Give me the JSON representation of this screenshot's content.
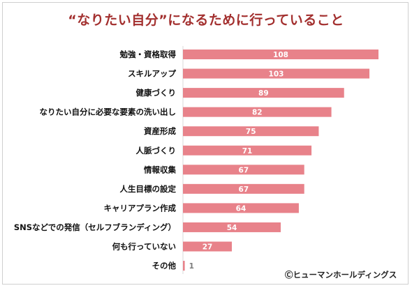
{
  "chart_data": {
    "type": "bar",
    "orientation": "horizontal",
    "title": "“なりたい自分”になるために行っていること",
    "categories": [
      "勉強・資格取得",
      "スキルアップ",
      "健康づくり",
      "なりたい自分に必要な要素の洗い出し",
      "資産形成",
      "人脈づくり",
      "情報収集",
      "人生目標の設定",
      "キャリアプラン作成",
      "SNSなどでの発信（セルフブランディング）",
      "何も行っていない",
      "その他"
    ],
    "values": [
      108,
      103,
      89,
      82,
      75,
      71,
      67,
      67,
      64,
      54,
      27,
      1
    ],
    "xlim": [
      0,
      108
    ],
    "grid": false,
    "legend": "none",
    "bar_color": "#e8828a",
    "value_label_color": "#ffffff",
    "small_value_label_color": "#7a7a7a",
    "title_color": "#a3302f"
  },
  "footer": {
    "copyright": "Ⓒヒューマンホールディングス"
  }
}
